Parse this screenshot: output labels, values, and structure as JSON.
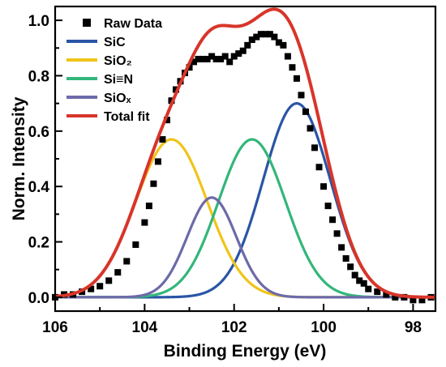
{
  "chart_data": {
    "type": "line",
    "xlabel": "Binding Energy (eV)",
    "ylabel": "Norm. Intensity",
    "xlim": [
      106,
      97.5
    ],
    "ylim": [
      -0.05,
      1.05
    ],
    "x_reversed": true,
    "xticks": [
      106,
      104,
      102,
      100,
      98
    ],
    "yticks": [
      0.0,
      0.2,
      0.4,
      0.6,
      0.8,
      1.0
    ],
    "xtick_labels": [
      "106",
      "104",
      "102",
      "100",
      "98"
    ],
    "ytick_labels": [
      "0.0",
      "0.2",
      "0.4",
      "0.6",
      "0.8",
      "1.0"
    ],
    "legend_position": "top-left",
    "grid": false,
    "series": [
      {
        "name": "Raw Data",
        "kind": "scatter",
        "color": "#000000",
        "x": [
          106.0,
          105.8,
          105.6,
          105.4,
          105.2,
          105.0,
          104.8,
          104.6,
          104.4,
          104.2,
          104.0,
          103.9,
          103.8,
          103.7,
          103.6,
          103.5,
          103.4,
          103.3,
          103.2,
          103.1,
          103.0,
          102.9,
          102.8,
          102.7,
          102.6,
          102.5,
          102.4,
          102.3,
          102.2,
          102.1,
          102.0,
          101.9,
          101.8,
          101.7,
          101.6,
          101.5,
          101.4,
          101.3,
          101.2,
          101.1,
          101.0,
          100.9,
          100.8,
          100.7,
          100.6,
          100.5,
          100.4,
          100.3,
          100.2,
          100.1,
          100.0,
          99.9,
          99.8,
          99.7,
          99.6,
          99.5,
          99.4,
          99.3,
          99.2,
          99.1,
          99.0,
          98.8,
          98.6,
          98.4,
          98.2,
          98.0,
          97.8,
          97.6
        ],
        "y": [
          0.0,
          0.01,
          0.01,
          0.02,
          0.03,
          0.04,
          0.06,
          0.09,
          0.13,
          0.19,
          0.27,
          0.33,
          0.41,
          0.49,
          0.57,
          0.64,
          0.71,
          0.75,
          0.78,
          0.81,
          0.83,
          0.85,
          0.86,
          0.86,
          0.86,
          0.87,
          0.86,
          0.86,
          0.87,
          0.85,
          0.87,
          0.88,
          0.89,
          0.91,
          0.93,
          0.94,
          0.95,
          0.95,
          0.95,
          0.94,
          0.92,
          0.91,
          0.87,
          0.83,
          0.79,
          0.73,
          0.67,
          0.61,
          0.54,
          0.47,
          0.4,
          0.33,
          0.28,
          0.23,
          0.18,
          0.14,
          0.11,
          0.08,
          0.06,
          0.05,
          0.03,
          0.02,
          0.01,
          0.0,
          0.0,
          -0.01,
          -0.01,
          0.0
        ]
      },
      {
        "name": "SiC",
        "kind": "line",
        "color": "#2a55a6",
        "center": 100.6,
        "amplitude": 0.7,
        "sigma": 0.75
      },
      {
        "name": "SiO₂",
        "kind": "line",
        "color": "#f0c41a",
        "center": 103.4,
        "amplitude": 0.57,
        "sigma": 0.8
      },
      {
        "name": "Si≡N",
        "kind": "line",
        "color": "#33b67a",
        "center": 101.6,
        "amplitude": 0.57,
        "sigma": 0.75
      },
      {
        "name": "SiOₓ",
        "kind": "line",
        "color": "#6d6aa9",
        "center": 102.5,
        "amplitude": 0.36,
        "sigma": 0.55
      },
      {
        "name": "Total fit",
        "kind": "line",
        "color": "#d8352a"
      }
    ]
  }
}
